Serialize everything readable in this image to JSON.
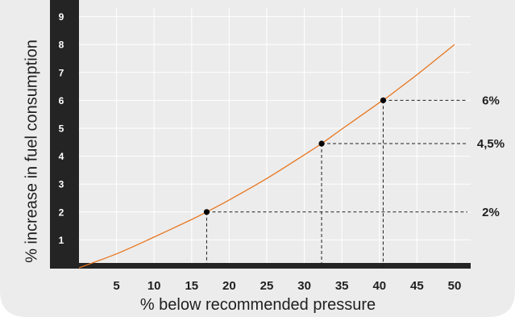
{
  "chart_data": {
    "type": "line",
    "title": "",
    "xlabel": "% below recommended pressure",
    "ylabel": "% increase in fuel consumption",
    "x_ticks": [
      5,
      10,
      15,
      20,
      25,
      30,
      35,
      40,
      45,
      50
    ],
    "y_ticks": [
      1,
      2,
      3,
      4,
      5,
      6,
      7,
      8,
      9
    ],
    "xlim": [
      0,
      52
    ],
    "ylim": [
      0,
      9.3
    ],
    "grid": true,
    "series": [
      {
        "color": "#e8761f",
        "x": [
          0,
          5,
          10,
          15,
          17,
          20,
          25,
          30,
          32.3,
          35,
          40,
          40.5,
          45,
          50
        ],
        "y": [
          0,
          0.5,
          1.1,
          1.73,
          2.0,
          2.43,
          3.2,
          4.05,
          4.45,
          4.97,
          5.92,
          6.0,
          6.92,
          8.0
        ]
      }
    ],
    "highlights": [
      {
        "x": 17,
        "y": 2,
        "label": "2%"
      },
      {
        "x": 32.3,
        "y": 4.45,
        "label": "4,5%"
      },
      {
        "x": 40.5,
        "y": 6,
        "label": "6%"
      }
    ]
  },
  "colors": {
    "panel": "#ececec",
    "axis_band": "#242424",
    "curve": "#e8761f",
    "grid": "#ffffff"
  }
}
